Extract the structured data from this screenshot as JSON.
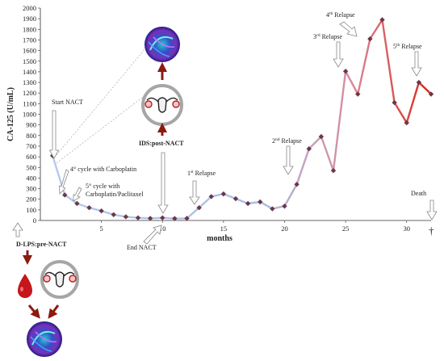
{
  "chart_data": {
    "type": "line",
    "title": "",
    "ylabel": "CA-125 (U/mL)",
    "xlabel": "months",
    "ylim": [
      0,
      2000
    ],
    "yticks": [
      0,
      100,
      200,
      300,
      400,
      500,
      600,
      700,
      800,
      900,
      1000,
      1100,
      1200,
      1300,
      1400,
      1500,
      1600,
      1700,
      1800,
      1900,
      2000
    ],
    "xlim": [
      0,
      32
    ],
    "xticks": [
      5,
      10,
      15,
      20,
      25,
      30
    ],
    "points": [
      {
        "x": 1,
        "y": 610
      },
      {
        "x": 2,
        "y": 240
      },
      {
        "x": 3,
        "y": 160
      },
      {
        "x": 4,
        "y": 120
      },
      {
        "x": 5,
        "y": 90
      },
      {
        "x": 6,
        "y": 55
      },
      {
        "x": 7,
        "y": 35
      },
      {
        "x": 8,
        "y": 25
      },
      {
        "x": 9,
        "y": 20
      },
      {
        "x": 10,
        "y": 25
      },
      {
        "x": 11,
        "y": 18
      },
      {
        "x": 12,
        "y": 20
      },
      {
        "x": 13,
        "y": 120
      },
      {
        "x": 14,
        "y": 225
      },
      {
        "x": 15,
        "y": 250
      },
      {
        "x": 16,
        "y": 205
      },
      {
        "x": 17,
        "y": 160
      },
      {
        "x": 18,
        "y": 175
      },
      {
        "x": 19,
        "y": 110
      },
      {
        "x": 20,
        "y": 135
      },
      {
        "x": 21,
        "y": 340
      },
      {
        "x": 22,
        "y": 675
      },
      {
        "x": 23,
        "y": 790
      },
      {
        "x": 24,
        "y": 470
      },
      {
        "x": 25,
        "y": 1405
      },
      {
        "x": 26,
        "y": 1190
      },
      {
        "x": 27,
        "y": 1710
      },
      {
        "x": 28,
        "y": 1890
      },
      {
        "x": 29,
        "y": 1110
      },
      {
        "x": 30,
        "y": 920
      },
      {
        "x": 31,
        "y": 1300
      },
      {
        "x": 32,
        "y": 1190
      }
    ],
    "line_colors": {
      "start": "#aac0e8",
      "end": "#d92b1f"
    },
    "marker_color": "#6b3848",
    "grid": false
  },
  "annotations": {
    "start_nact": "Start NACT",
    "cycle4": "4° cycle with Carboplatin",
    "cycle5_line1": "5° cycle with",
    "cycle5_line2": "Carboplatin/Paclitaxel",
    "end_nact": "End NACT",
    "ids": "IDS:post-NACT",
    "dlps": "D-LPS:pre-NACT",
    "relapse1_num": "1",
    "relapse1_sup": "st",
    "relapse1_word": " Relapse",
    "relapse2_num": "2",
    "relapse2_sup": "nd",
    "relapse2_word": " Relapse",
    "relapse3_num": "3",
    "relapse3_sup": "rd",
    "relapse3_word": " Relapse",
    "relapse4_num": "4",
    "relapse4_sup": "th",
    "relapse4_word": " Relapse",
    "relapse5_num": "5",
    "relapse5_sup": "th",
    "relapse5_word": " Relapse",
    "death": "Death",
    "dagger": "†"
  },
  "icons": {
    "uterus": "uterus-in-circle-icon",
    "blood": "blood-drop-icon",
    "organoid": "organoid-culture-icon"
  }
}
